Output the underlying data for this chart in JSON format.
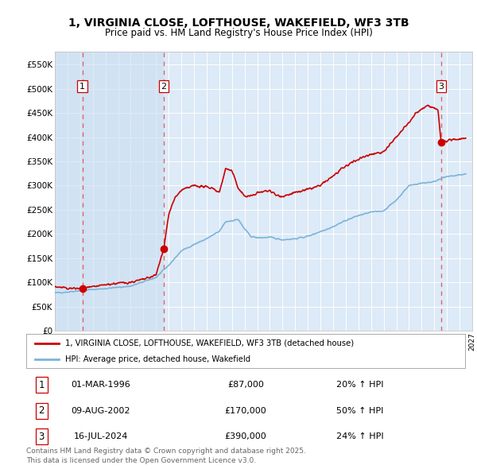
{
  "title_line1": "1, VIRGINIA CLOSE, LOFTHOUSE, WAKEFIELD, WF3 3TB",
  "title_line2": "Price paid vs. HM Land Registry's House Price Index (HPI)",
  "background_color": "#ffffff",
  "plot_bg_color": "#ddeaf7",
  "hatch_color": "#b8c8d8",
  "red_line_color": "#cc0000",
  "blue_line_color": "#7ab4d8",
  "grid_color": "#ffffff",
  "dashed_line_color": "#dd6666",
  "purchases": [
    {
      "index": 1,
      "date_label": "01-MAR-1996",
      "price": 87000,
      "hpi_pct": "20% ↑ HPI",
      "x_year": 1996.17
    },
    {
      "index": 2,
      "date_label": "09-AUG-2002",
      "price": 170000,
      "hpi_pct": "50% ↑ HPI",
      "x_year": 2002.61
    },
    {
      "index": 3,
      "date_label": "16-JUL-2024",
      "price": 390000,
      "hpi_pct": "24% ↑ HPI",
      "x_year": 2024.54
    }
  ],
  "legend_label_red": "1, VIRGINIA CLOSE, LOFTHOUSE, WAKEFIELD, WF3 3TB (detached house)",
  "legend_label_blue": "HPI: Average price, detached house, Wakefield",
  "footer_line1": "Contains HM Land Registry data © Crown copyright and database right 2025.",
  "footer_line2": "This data is licensed under the Open Government Licence v3.0.",
  "xmin": 1994,
  "xmax": 2027,
  "ymin": 0,
  "ymax": 577000,
  "yticks": [
    0,
    50000,
    100000,
    150000,
    200000,
    250000,
    300000,
    350000,
    400000,
    450000,
    500000,
    550000
  ],
  "ytick_labels": [
    "£0",
    "£50K",
    "£100K",
    "£150K",
    "£200K",
    "£250K",
    "£300K",
    "£350K",
    "£400K",
    "£450K",
    "£500K",
    "£550K"
  ]
}
